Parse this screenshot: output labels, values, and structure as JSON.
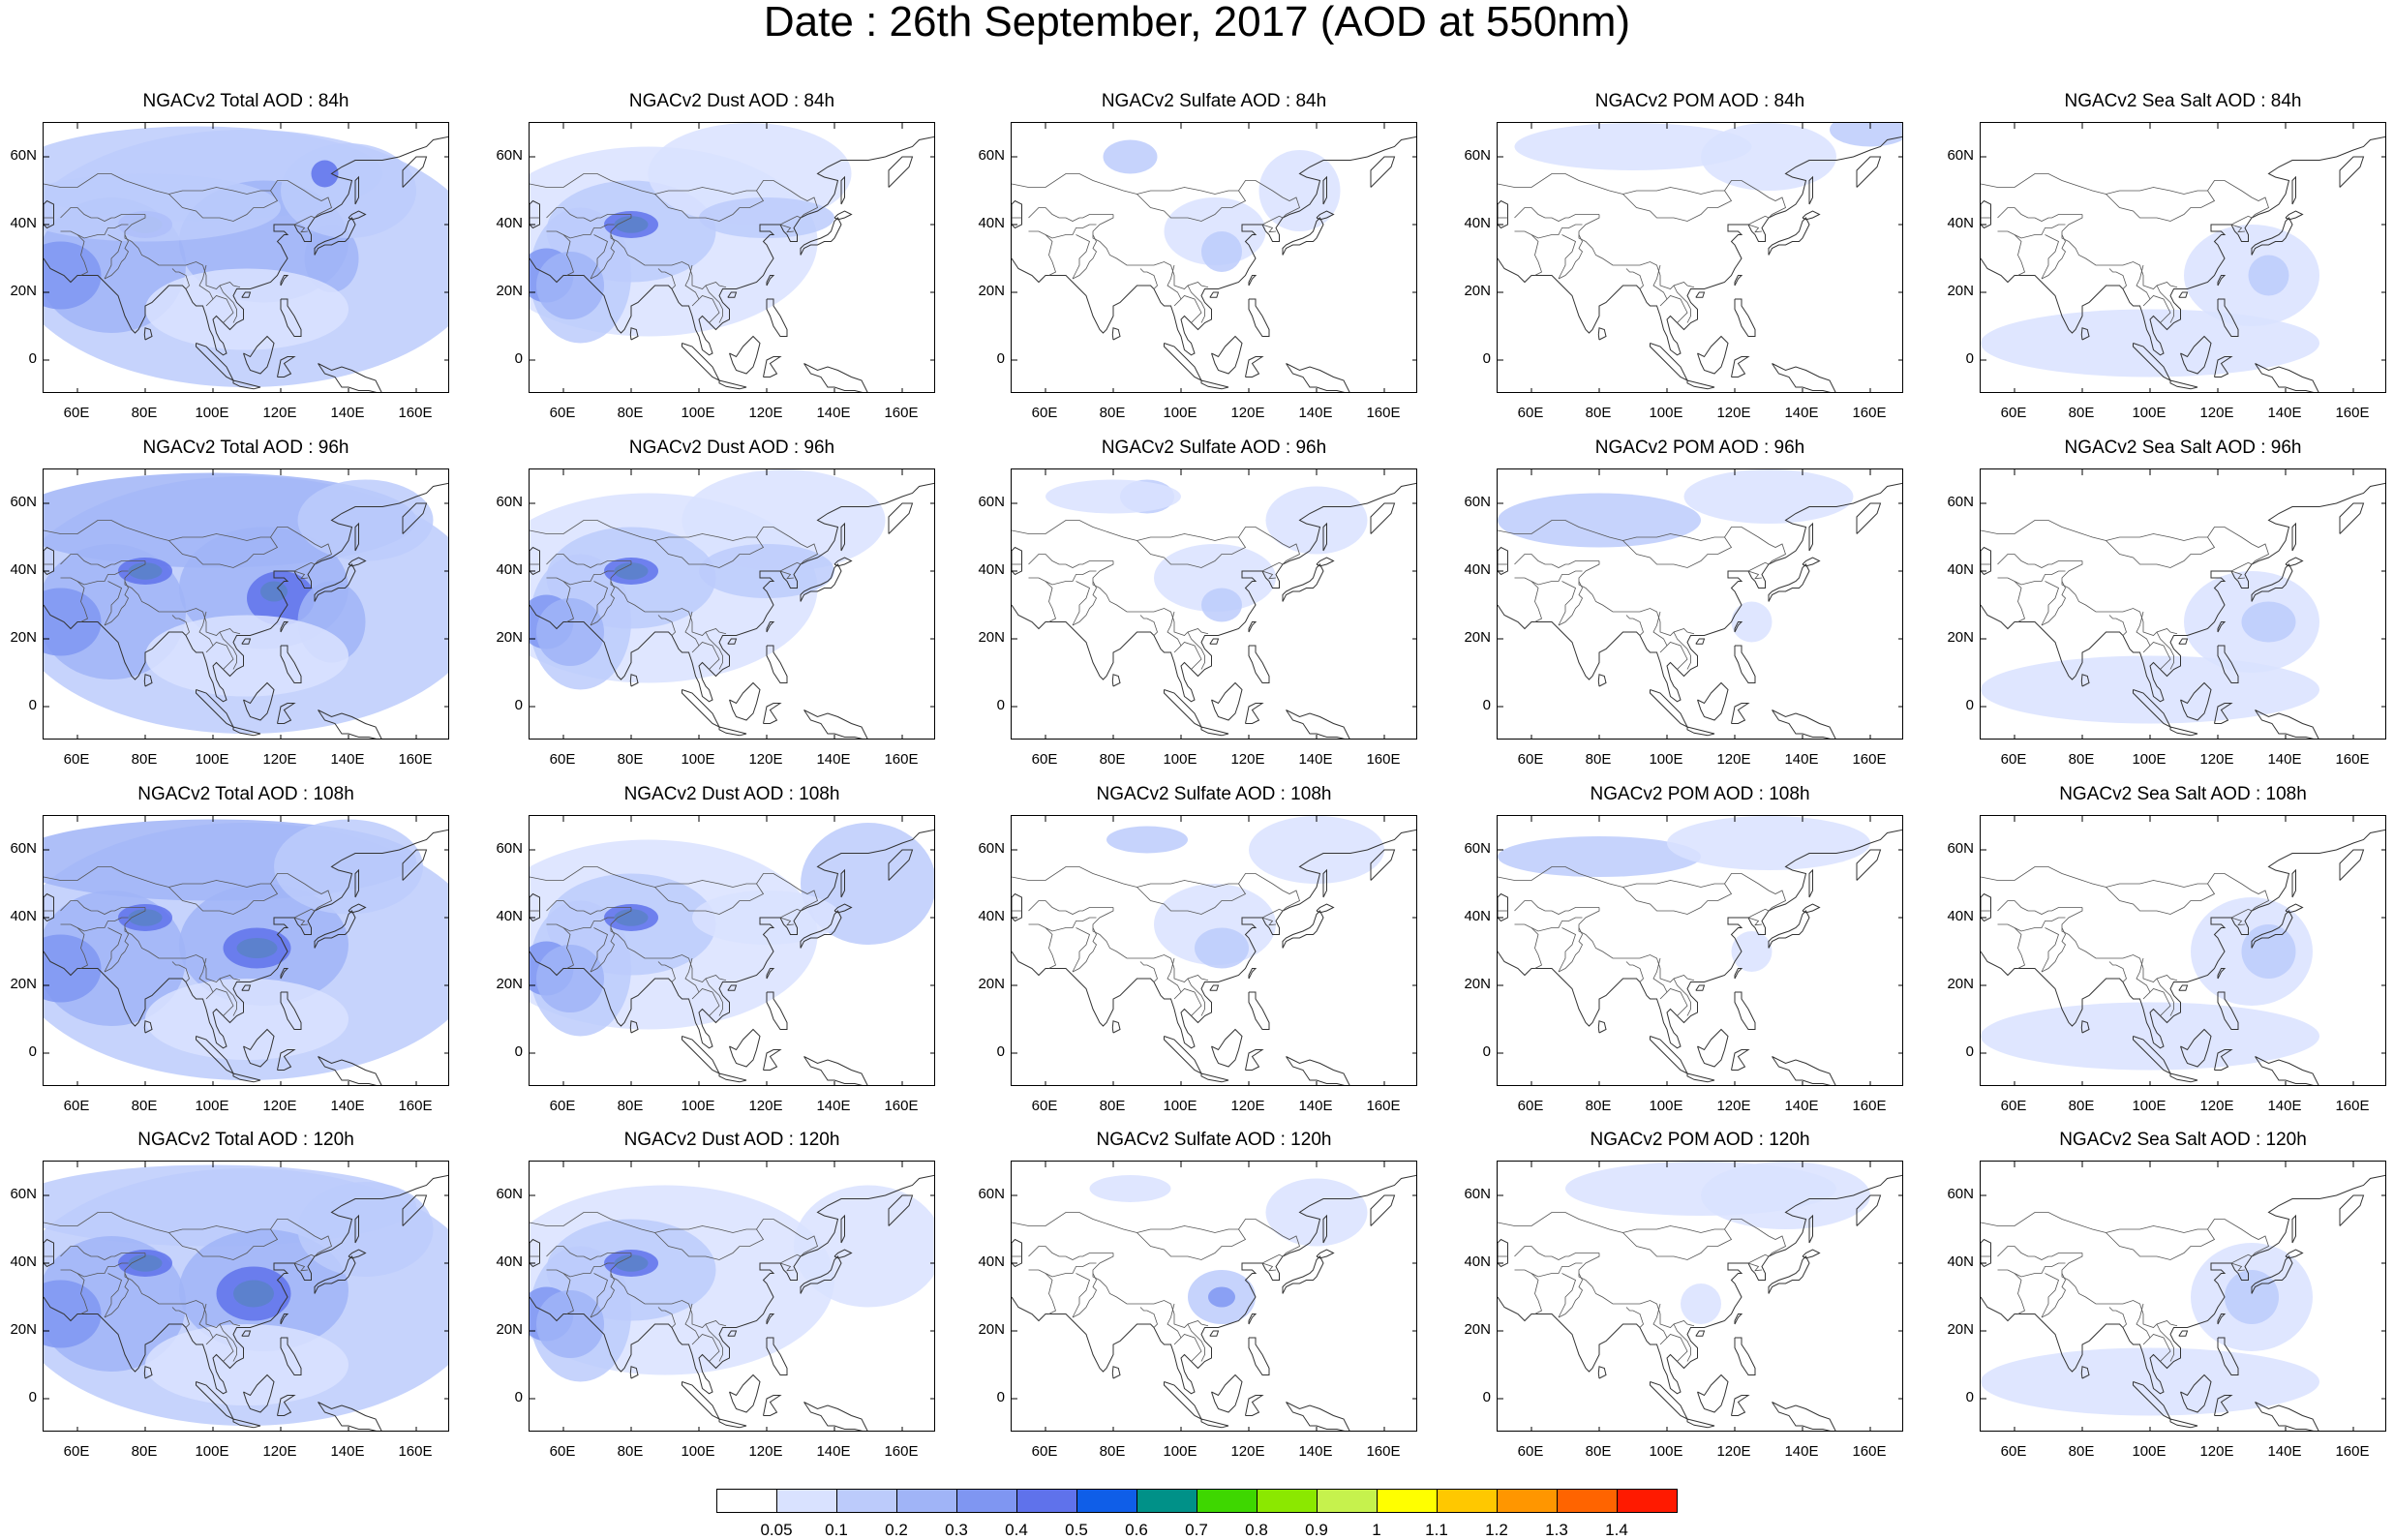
{
  "title": "Date : 26th September, 2017 (AOD at 550nm)",
  "row_leads": [
    "84h",
    "96h",
    "108h",
    "120h"
  ],
  "panels": [
    {
      "row": 0,
      "col": 0,
      "title": "NGACv2 Total AOD : 84h",
      "species": "total"
    },
    {
      "row": 0,
      "col": 1,
      "title": "NGACv2 Dust AOD : 84h",
      "species": "dust"
    },
    {
      "row": 0,
      "col": 2,
      "title": "NGACv2 Sulfate AOD : 84h",
      "species": "sulfate"
    },
    {
      "row": 0,
      "col": 3,
      "title": "NGACv2 POM AOD : 84h",
      "species": "pom"
    },
    {
      "row": 0,
      "col": 4,
      "title": "NGACv2 Sea Salt AOD : 84h",
      "species": "seasalt"
    },
    {
      "row": 1,
      "col": 0,
      "title": "NGACv2 Total AOD : 96h",
      "species": "total"
    },
    {
      "row": 1,
      "col": 1,
      "title": "NGACv2 Dust AOD : 96h",
      "species": "dust"
    },
    {
      "row": 1,
      "col": 2,
      "title": "NGACv2 Sulfate AOD : 96h",
      "species": "sulfate"
    },
    {
      "row": 1,
      "col": 3,
      "title": "NGACv2 POM AOD : 96h",
      "species": "pom"
    },
    {
      "row": 1,
      "col": 4,
      "title": "NGACv2 Sea Salt AOD : 96h",
      "species": "seasalt"
    },
    {
      "row": 2,
      "col": 0,
      "title": "NGACv2 Total AOD : 108h",
      "species": "total"
    },
    {
      "row": 2,
      "col": 1,
      "title": "NGACv2 Dust AOD : 108h",
      "species": "dust"
    },
    {
      "row": 2,
      "col": 2,
      "title": "NGACv2 Sulfate AOD : 108h",
      "species": "sulfate"
    },
    {
      "row": 2,
      "col": 3,
      "title": "NGACv2 POM AOD : 108h",
      "species": "pom"
    },
    {
      "row": 2,
      "col": 4,
      "title": "NGACv2 Sea Salt AOD : 108h",
      "species": "seasalt"
    },
    {
      "row": 3,
      "col": 0,
      "title": "NGACv2 Total AOD : 120h",
      "species": "total"
    },
    {
      "row": 3,
      "col": 1,
      "title": "NGACv2 Dust AOD : 120h",
      "species": "dust"
    },
    {
      "row": 3,
      "col": 2,
      "title": "NGACv2 Sulfate AOD : 120h",
      "species": "sulfate"
    },
    {
      "row": 3,
      "col": 3,
      "title": "NGACv2 POM AOD : 120h",
      "species": "pom"
    },
    {
      "row": 3,
      "col": 4,
      "title": "NGACv2 Sea Salt  AOD : 120h",
      "species": "seasalt"
    }
  ],
  "map_extent": {
    "lon_min": 50,
    "lon_max": 170,
    "lat_min": -10,
    "lat_max": 70
  },
  "lon_ticks": [
    {
      "value": 60,
      "label": "60E"
    },
    {
      "value": 80,
      "label": "80E"
    },
    {
      "value": 100,
      "label": "100E"
    },
    {
      "value": 120,
      "label": "120E"
    },
    {
      "value": 140,
      "label": "140E"
    },
    {
      "value": 160,
      "label": "160E"
    }
  ],
  "lat_ticks": [
    {
      "value": 60,
      "label": "60N"
    },
    {
      "value": 40,
      "label": "40N"
    },
    {
      "value": 20,
      "label": "20N"
    },
    {
      "value": 0,
      "label": "0"
    }
  ],
  "colorbar": {
    "levels": [
      "0.05",
      "0.1",
      "0.2",
      "0.3",
      "0.4",
      "0.5",
      "0.6",
      "0.7",
      "0.8",
      "0.9",
      "1",
      "1.1",
      "1.2",
      "1.3",
      "1.4"
    ],
    "colors": [
      "#ffffff",
      "#d9e2ff",
      "#bccbfb",
      "#a0b4f7",
      "#7f96f2",
      "#5f72eb",
      "#0f5ee8",
      "#009188",
      "#3ed700",
      "#8be800",
      "#c6f24d",
      "#ffff00",
      "#ffc800",
      "#ff9600",
      "#ff6400",
      "#ff1a00"
    ]
  },
  "highlights": {
    "taklimakan_lonlat": [
      80,
      40
    ],
    "china_hotspot_lonlat": [
      112,
      31
    ]
  }
}
